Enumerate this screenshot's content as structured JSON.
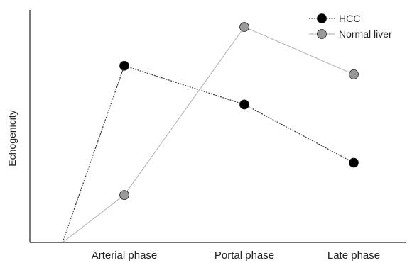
{
  "chart_data": {
    "type": "line",
    "categories": [
      "",
      "Arterial phase",
      "Portal phase",
      "Late phase"
    ],
    "xlabel": "",
    "ylabel": "Echogenicity",
    "ylim": [
      0,
      100
    ],
    "grid": false,
    "legend_position": "top-right",
    "series": [
      {
        "name": "HCC",
        "values": [
          0,
          82,
          64,
          37
        ],
        "marker_color": "#000000",
        "line_color": "#333333",
        "line_style": "dotted"
      },
      {
        "name": "Normal liver",
        "values": [
          0,
          22,
          100,
          78
        ],
        "marker_color": "#999999",
        "line_color": "#bbbbbb",
        "line_style": "solid"
      }
    ]
  }
}
